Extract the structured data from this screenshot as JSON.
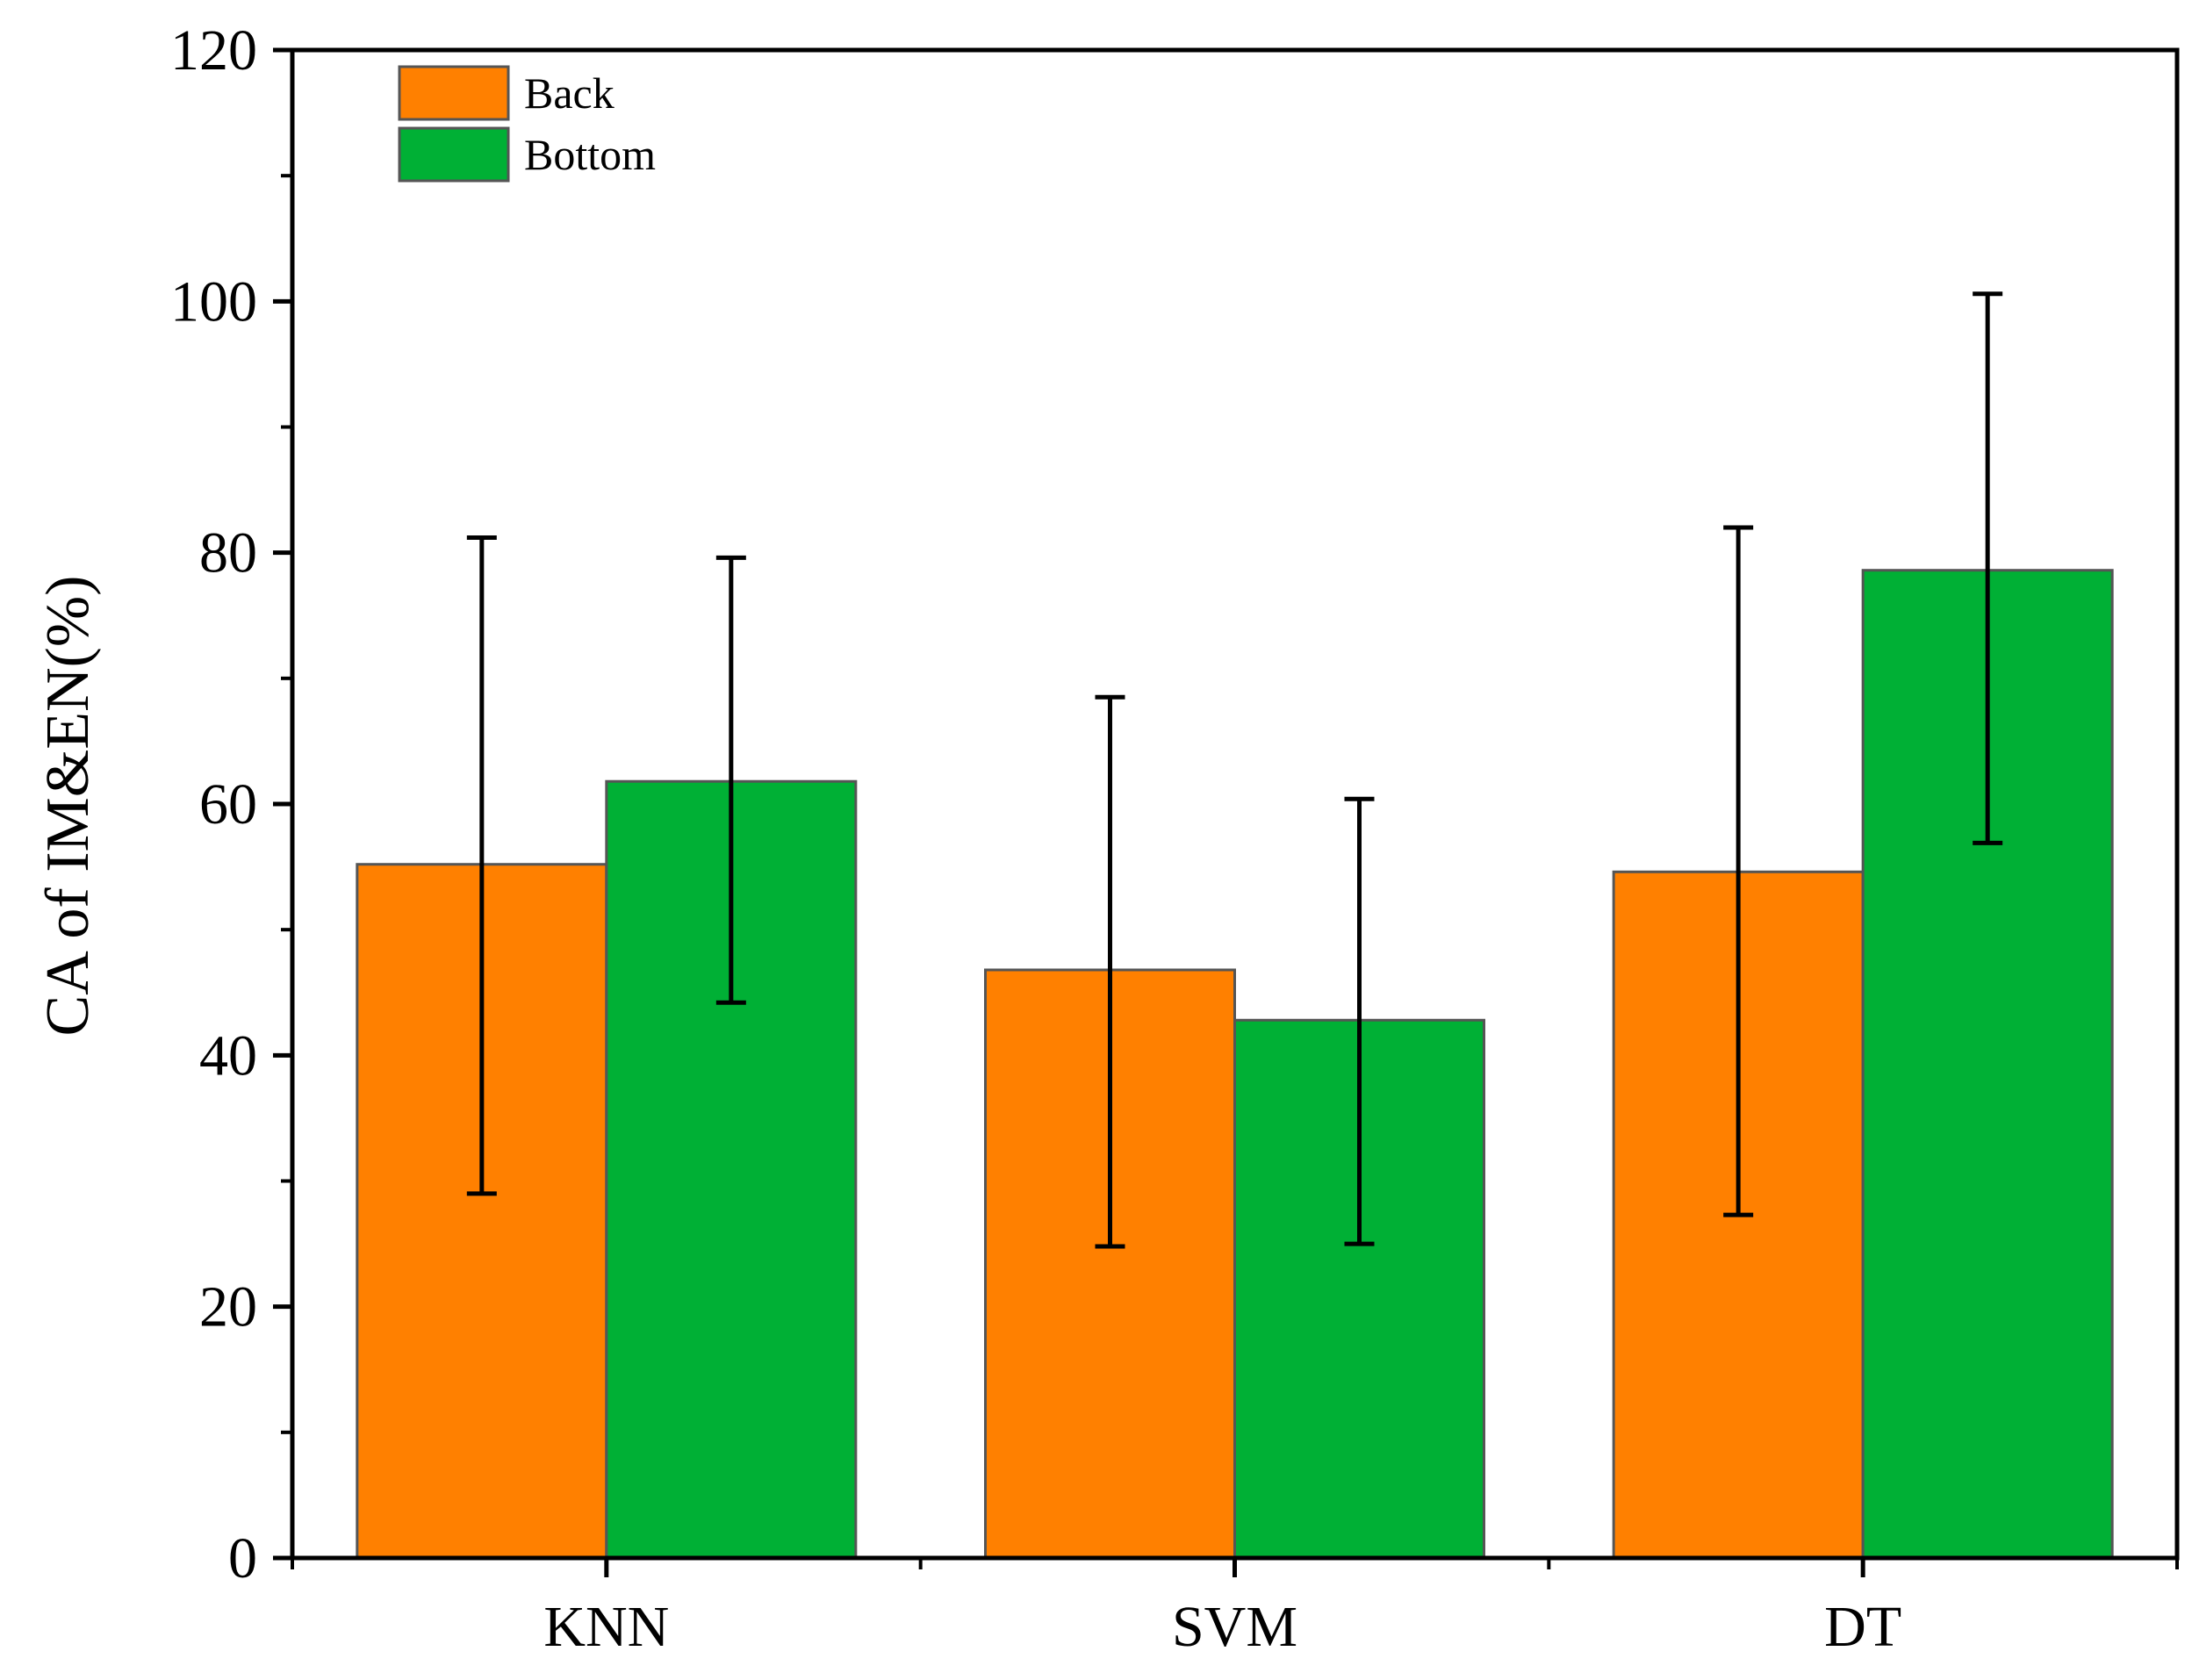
{
  "chart_data": {
    "type": "bar",
    "title": "",
    "xlabel": "",
    "ylabel": "CA of IM&EN(%)",
    "ylim": [
      0,
      120
    ],
    "y_ticks": [
      "0",
      "20",
      "40",
      "60",
      "80",
      "100",
      "120"
    ],
    "categories": [
      "KNN",
      "SVM",
      "DT"
    ],
    "legend_position": "top-left",
    "grid": false,
    "series": [
      {
        "name": "Back",
        "color": "#FF8000",
        "values": [
          55.2,
          46.8,
          54.6
        ],
        "error_low": [
          29.0,
          24.8,
          27.3
        ],
        "error_high": [
          81.2,
          68.5,
          82.0
        ]
      },
      {
        "name": "Bottom",
        "color": "#00B035",
        "values": [
          61.8,
          42.8,
          78.6
        ],
        "error_low": [
          44.2,
          25.0,
          56.9
        ],
        "error_high": [
          79.6,
          60.4,
          100.6
        ]
      }
    ]
  }
}
